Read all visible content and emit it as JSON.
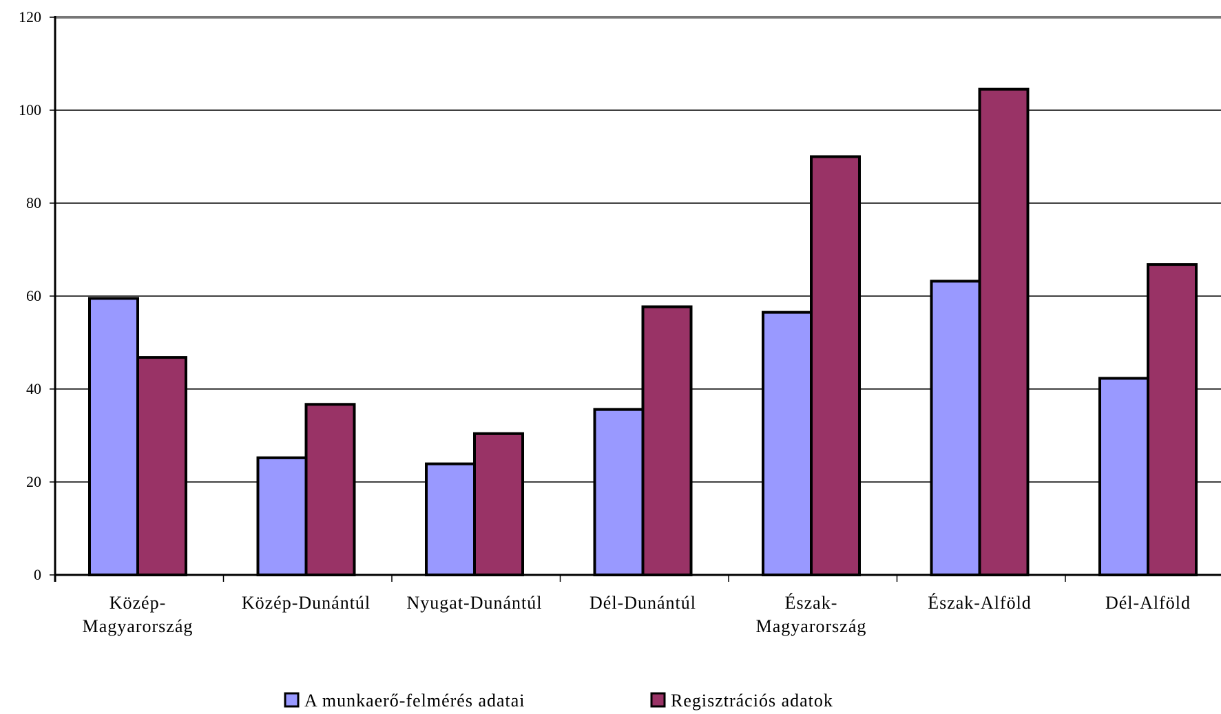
{
  "chart_data": {
    "type": "bar",
    "title": "",
    "xlabel": "",
    "ylabel": "",
    "ylim": [
      0,
      120
    ],
    "yticks": [
      0,
      20,
      40,
      60,
      80,
      100,
      120
    ],
    "grid": true,
    "legend_position": "bottom",
    "categories": [
      [
        "Közép-",
        "Magyarország"
      ],
      [
        "Közép-Dunántúl"
      ],
      [
        "Nyugat-Dunántúl"
      ],
      [
        "Dél-Dunántúl"
      ],
      [
        "Észak-",
        "Magyarország"
      ],
      [
        "Észak-Alföld"
      ],
      [
        "Dél-Alföld"
      ]
    ],
    "series": [
      {
        "name": "A munkaerő-felmérés adatai",
        "color": "#9999ff",
        "values": [
          59.5,
          25.2,
          23.9,
          35.6,
          56.5,
          63.2,
          42.3
        ]
      },
      {
        "name": "Regisztrációs adatok",
        "color": "#993366",
        "values": [
          46.8,
          36.7,
          30.4,
          57.7,
          90.0,
          104.5,
          66.8
        ]
      }
    ]
  }
}
